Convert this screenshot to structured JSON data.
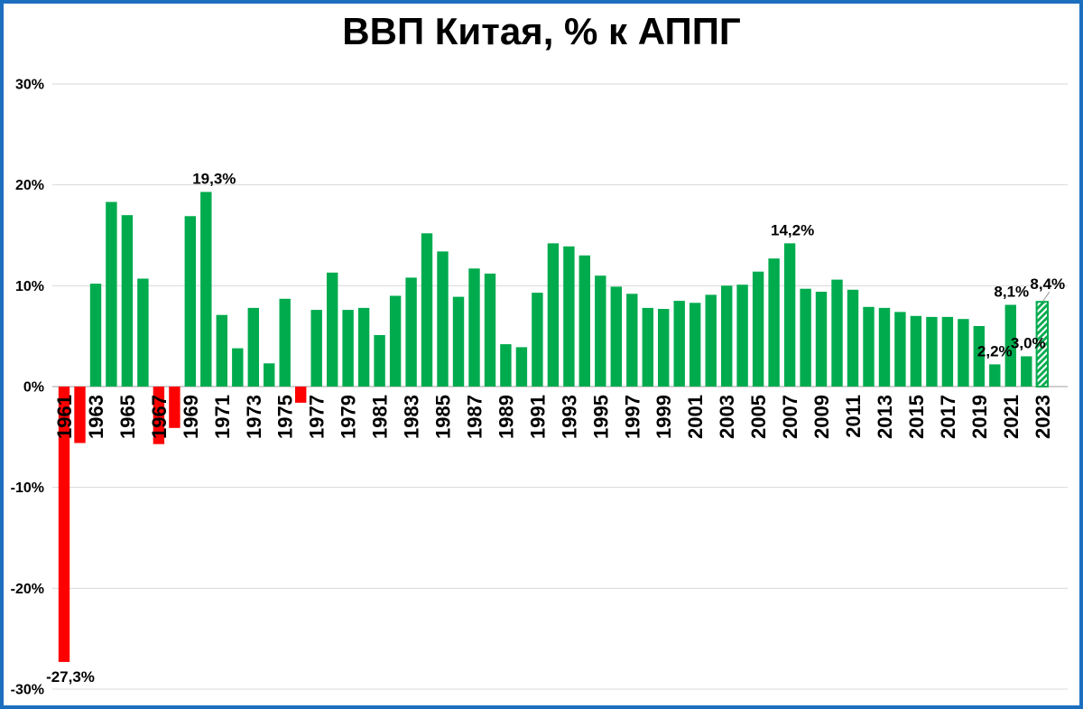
{
  "frame": {
    "border_color": "#1c6fbf",
    "background": "#ffffff"
  },
  "title": "ВВП Китая, % к АППГ",
  "chart_data": {
    "type": "bar",
    "title": "ВВП Китая, % к АППГ",
    "xlabel": "",
    "ylabel": "",
    "ylim": [
      -30,
      30
    ],
    "grid": true,
    "legend": "none",
    "colors": {
      "positive_bar": "#00AB4E",
      "negative_bar": "#FF0000",
      "forecast_hatch": "#00AB4E",
      "gridline": "#D9D9D9",
      "zero_line": "#BFBFBF",
      "label_text": "#000000",
      "leader_line": "#999999"
    },
    "yticks": [
      {
        "value": 30,
        "label": "30%"
      },
      {
        "value": 20,
        "label": "20%"
      },
      {
        "value": 10,
        "label": "10%"
      },
      {
        "value": 0,
        "label": "0%"
      },
      {
        "value": -10,
        "label": "-10%"
      },
      {
        "value": -20,
        "label": "-20%"
      },
      {
        "value": -30,
        "label": "-30%"
      }
    ],
    "years": [
      1961,
      1962,
      1963,
      1964,
      1965,
      1966,
      1967,
      1968,
      1969,
      1970,
      1971,
      1972,
      1973,
      1974,
      1975,
      1976,
      1977,
      1978,
      1979,
      1980,
      1981,
      1982,
      1983,
      1984,
      1985,
      1986,
      1987,
      1988,
      1989,
      1990,
      1991,
      1992,
      1993,
      1994,
      1995,
      1996,
      1997,
      1998,
      1999,
      2000,
      2001,
      2002,
      2003,
      2004,
      2005,
      2006,
      2007,
      2008,
      2009,
      2010,
      2011,
      2012,
      2013,
      2014,
      2015,
      2016,
      2017,
      2018,
      2019,
      2020,
      2021,
      2022,
      2023
    ],
    "values": [
      -27.3,
      -5.6,
      10.2,
      18.3,
      17.0,
      10.7,
      -5.7,
      -4.1,
      16.9,
      19.3,
      7.1,
      3.8,
      7.8,
      2.3,
      8.7,
      -1.6,
      7.6,
      11.3,
      7.6,
      7.8,
      5.1,
      9.0,
      10.8,
      15.2,
      13.4,
      8.9,
      11.7,
      11.2,
      4.2,
      3.9,
      9.3,
      14.2,
      13.9,
      13.0,
      11.0,
      9.9,
      9.2,
      7.8,
      7.7,
      8.5,
      8.3,
      9.1,
      10.0,
      10.1,
      11.4,
      12.7,
      14.2,
      9.7,
      9.4,
      10.6,
      9.6,
      7.9,
      7.8,
      7.4,
      7.0,
      6.9,
      6.9,
      6.7,
      6.0,
      2.2,
      8.1,
      3.0,
      8.4
    ],
    "xtick_labels": [
      "1961",
      "1963",
      "1965",
      "1967",
      "1969",
      "1971",
      "1973",
      "1975",
      "1977",
      "1979",
      "1981",
      "1983",
      "1985",
      "1987",
      "1989",
      "1991",
      "1993",
      "1995",
      "1997",
      "1999",
      "2001",
      "2003",
      "2005",
      "2007",
      "2009",
      "2011",
      "2013",
      "2015",
      "2017",
      "2019",
      "2021",
      "2023"
    ],
    "forecast_years": [
      2023
    ],
    "point_labels": [
      {
        "year": 1961,
        "text": "-27,3%",
        "dx": 7
      },
      {
        "year": 1970,
        "text": "19,3%",
        "dx": 9
      },
      {
        "year": 2007,
        "text": "14,2%",
        "dx": 3
      },
      {
        "year": 2020,
        "text": "2,2%",
        "dx": 0
      },
      {
        "year": 2021,
        "text": "8,1%",
        "dx": 1
      },
      {
        "year": 2022,
        "text": "3,0%",
        "dx": 2
      },
      {
        "year": 2023,
        "text": "8,4%",
        "dx": 6,
        "raised": true,
        "leader_line": true
      }
    ]
  }
}
